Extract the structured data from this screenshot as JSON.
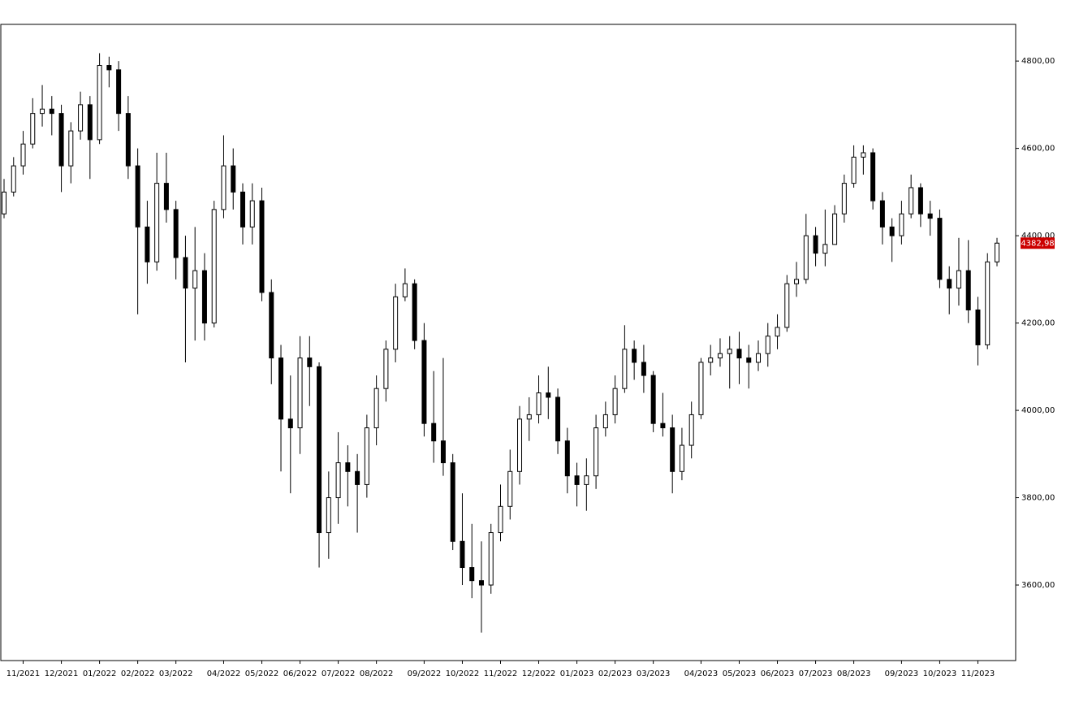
{
  "chart_data": {
    "type": "candlestick",
    "categories": [
      null,
      null,
      "11/2021",
      null,
      null,
      null,
      "12/2021",
      null,
      null,
      null,
      "01/2022",
      null,
      null,
      null,
      "02/2022",
      null,
      null,
      null,
      "03/2022",
      null,
      null,
      null,
      null,
      "04/2022",
      null,
      null,
      null,
      "05/2022",
      null,
      null,
      null,
      "06/2022",
      null,
      null,
      null,
      "07/2022",
      null,
      null,
      null,
      "08/2022",
      null,
      null,
      null,
      null,
      "09/2022",
      null,
      null,
      null,
      "10/2022",
      null,
      null,
      null,
      "11/2022",
      null,
      null,
      null,
      "12/2022",
      null,
      null,
      null,
      "01/2023",
      null,
      null,
      null,
      "02/2023",
      null,
      null,
      null,
      "03/2023",
      null,
      null,
      null,
      null,
      "04/2023",
      null,
      null,
      null,
      "05/2023",
      null,
      null,
      null,
      "06/2023",
      null,
      null,
      null,
      "07/2023",
      null,
      null,
      null,
      "08/2023",
      null,
      null,
      null,
      null,
      "09/2023",
      null,
      null,
      null,
      "10/2023",
      null,
      null,
      null,
      "11/2023",
      null,
      null
    ],
    "open": [
      4450,
      4500,
      4560,
      4610,
      4680,
      4690,
      4680,
      4560,
      4640,
      4700,
      4620,
      4790,
      4780,
      4680,
      4560,
      4420,
      4340,
      4520,
      4460,
      4350,
      4280,
      4320,
      4200,
      4460,
      4560,
      4500,
      4420,
      4480,
      4270,
      4120,
      3980,
      3960,
      4120,
      4100,
      3720,
      3800,
      3880,
      3860,
      3830,
      3960,
      4050,
      4140,
      4260,
      4290,
      4160,
      3970,
      3930,
      3880,
      3700,
      3640,
      3610,
      3600,
      3720,
      3780,
      3860,
      3980,
      3990,
      4040,
      4030,
      3930,
      3850,
      3830,
      3850,
      3960,
      3990,
      4050,
      4140,
      4110,
      4080,
      3970,
      3960,
      3860,
      3920,
      3990,
      4110,
      4120,
      4130,
      4140,
      4120,
      4110,
      4130,
      4170,
      4190,
      4290,
      4300,
      4400,
      4360,
      4380,
      4450,
      4520,
      4580,
      4590,
      4480,
      4420,
      4400,
      4450,
      4510,
      4450,
      4440,
      4300,
      4280,
      4320,
      4230,
      4150,
      4340
    ],
    "high": [
      4530,
      4580,
      4640,
      4715,
      4745,
      4720,
      4700,
      4660,
      4730,
      4720,
      4818,
      4810,
      4800,
      4720,
      4600,
      4480,
      4590,
      4590,
      4480,
      4400,
      4420,
      4360,
      4480,
      4630,
      4600,
      4520,
      4520,
      4510,
      4300,
      4150,
      4080,
      4170,
      4170,
      4110,
      3860,
      3950,
      3920,
      3900,
      3990,
      4080,
      4160,
      4290,
      4325,
      4300,
      4200,
      4090,
      4120,
      3900,
      3810,
      3740,
      3700,
      3740,
      3830,
      3910,
      4010,
      4030,
      4080,
      4100,
      4050,
      3960,
      3880,
      3890,
      3990,
      4020,
      4080,
      4195,
      4160,
      4150,
      4090,
      4040,
      3990,
      3960,
      4020,
      4120,
      4150,
      4165,
      4170,
      4180,
      4150,
      4160,
      4200,
      4220,
      4310,
      4340,
      4450,
      4420,
      4460,
      4470,
      4540,
      4607,
      4607,
      4600,
      4500,
      4440,
      4480,
      4540,
      4520,
      4480,
      4460,
      4330,
      4395,
      4390,
      4260,
      4360,
      4395
    ],
    "low": [
      4440,
      4490,
      4540,
      4600,
      4650,
      4630,
      4500,
      4520,
      4620,
      4530,
      4610,
      4740,
      4640,
      4530,
      4220,
      4290,
      4320,
      4430,
      4300,
      4110,
      4160,
      4160,
      4190,
      4440,
      4460,
      4380,
      4380,
      4250,
      4060,
      3860,
      3810,
      3900,
      4010,
      3640,
      3660,
      3740,
      3780,
      3720,
      3800,
      3920,
      4020,
      4110,
      4250,
      4140,
      3940,
      3880,
      3850,
      3680,
      3600,
      3570,
      3491,
      3580,
      3700,
      3750,
      3830,
      3930,
      3970,
      3980,
      3900,
      3810,
      3780,
      3770,
      3820,
      3940,
      3970,
      4040,
      4070,
      4040,
      3950,
      3940,
      3810,
      3840,
      3890,
      3980,
      4080,
      4100,
      4050,
      4060,
      4050,
      4090,
      4100,
      4140,
      4180,
      4260,
      4290,
      4330,
      4330,
      4380,
      4430,
      4510,
      4540,
      4460,
      4380,
      4340,
      4380,
      4440,
      4420,
      4400,
      4280,
      4220,
      4240,
      4200,
      4103,
      4140,
      4330
    ],
    "close": [
      4500,
      4560,
      4610,
      4680,
      4690,
      4680,
      4560,
      4640,
      4700,
      4620,
      4790,
      4780,
      4680,
      4560,
      4420,
      4340,
      4520,
      4460,
      4350,
      4280,
      4320,
      4200,
      4460,
      4560,
      4500,
      4420,
      4480,
      4270,
      4120,
      3980,
      3960,
      4120,
      4100,
      3720,
      3800,
      3880,
      3860,
      3830,
      3960,
      4050,
      4140,
      4260,
      4290,
      4160,
      3970,
      3930,
      3880,
      3700,
      3640,
      3610,
      3600,
      3720,
      3780,
      3860,
      3980,
      3990,
      4040,
      4030,
      3930,
      3850,
      3830,
      3850,
      3960,
      3990,
      4050,
      4140,
      4110,
      4080,
      3970,
      3960,
      3860,
      3920,
      3990,
      4110,
      4120,
      4130,
      4140,
      4120,
      4110,
      4130,
      4170,
      4190,
      4290,
      4300,
      4400,
      4360,
      4380,
      4450,
      4520,
      4580,
      4590,
      4480,
      4420,
      4400,
      4450,
      4510,
      4450,
      4440,
      4300,
      4280,
      4320,
      4230,
      4150,
      4340,
      4382.98
    ],
    "last_label": "4382,98",
    "last_color": "#cc0000",
    "up_color": "#ffffff",
    "down_color": "#000000",
    "ylim": [
      3427,
      4884
    ],
    "yticks": [
      {
        "value": 3600,
        "label": "3600,00"
      },
      {
        "value": 3800,
        "label": "3800,00"
      },
      {
        "value": 4000,
        "label": "4000,00"
      },
      {
        "value": 4200,
        "label": "4200,00"
      },
      {
        "value": 4400,
        "label": "4400,00"
      },
      {
        "value": 4600,
        "label": "4600,00"
      },
      {
        "value": 4800,
        "label": "4800,00"
      }
    ]
  }
}
